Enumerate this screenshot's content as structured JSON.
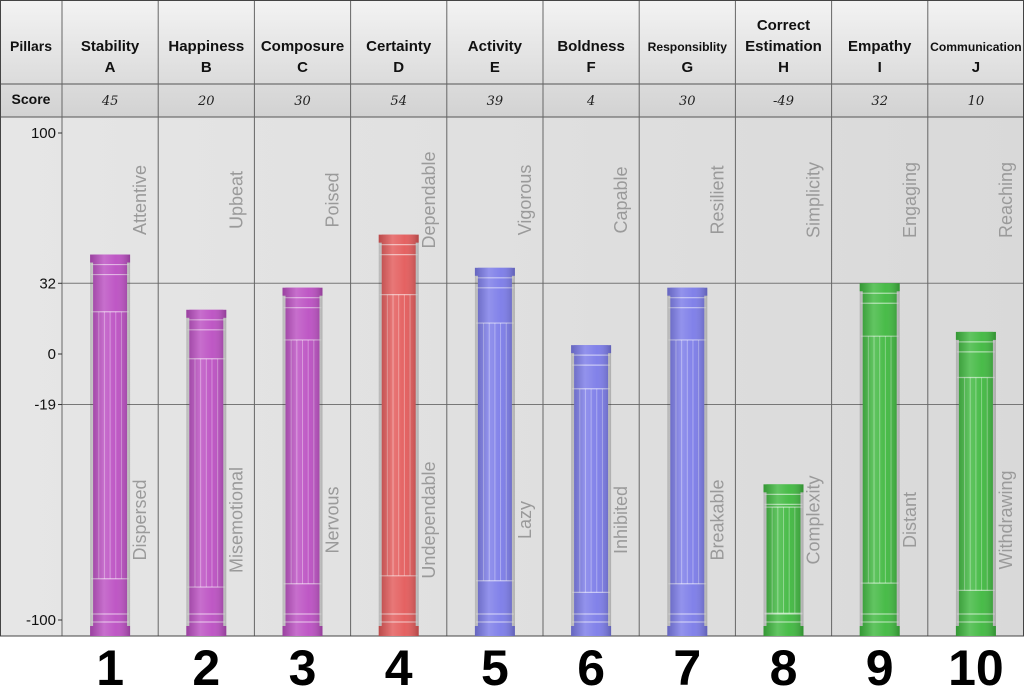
{
  "chart_data": {
    "type": "bar",
    "header_label": "Pillars",
    "score_label": "Score",
    "ylim": [
      -100,
      100
    ],
    "yticks": [
      100,
      32,
      0,
      -19,
      -100
    ],
    "gridlines": [
      32,
      -19
    ],
    "categories": [
      {
        "name": "Stability",
        "letter": "A",
        "score": "45",
        "value": 45,
        "high": "Attentive",
        "low": "Dispersed",
        "number": "1",
        "color": "#bb4fc2"
      },
      {
        "name": "Happiness",
        "letter": "B",
        "score": "20",
        "value": 20,
        "high": "Upbeat",
        "low": "Misemotional",
        "number": "2",
        "color": "#bb4fc2"
      },
      {
        "name": "Composure",
        "letter": "C",
        "score": "30",
        "value": 30,
        "high": "Poised",
        "low": "Nervous",
        "number": "3",
        "color": "#bb4fc2"
      },
      {
        "name": "Certainty",
        "letter": "D",
        "score": "54",
        "value": 54,
        "high": "Dependable",
        "low": "Undependable",
        "number": "4",
        "color": "#e35a5a"
      },
      {
        "name": "Activity",
        "letter": "E",
        "score": "39",
        "value": 39,
        "high": "Vigorous",
        "low": "Lazy",
        "number": "5",
        "color": "#7b7be8"
      },
      {
        "name": "Boldness",
        "letter": "F",
        "score": "4",
        "value": 4,
        "high": "Capable",
        "low": "Inhibited",
        "number": "6",
        "color": "#7b7be8"
      },
      {
        "name": "Responsiblity",
        "letter": "G",
        "score": "30",
        "value": 30,
        "high": "Resilient",
        "low": "Breakable",
        "number": "7",
        "color": "#7b7be8"
      },
      {
        "name": "Correct Estimation",
        "letter": "H",
        "score": "-49",
        "value": -49,
        "high": "Simplicity",
        "low": "Complexity",
        "number": "8",
        "color": "#3fb83f"
      },
      {
        "name": "Empathy",
        "letter": "I",
        "score": "32",
        "value": 32,
        "high": "Engaging",
        "low": "Distant",
        "number": "9",
        "color": "#3fb83f"
      },
      {
        "name": "Communication",
        "letter": "J",
        "score": "10",
        "value": 10,
        "high": "Reaching",
        "low": "Withdrawing",
        "number": "10",
        "color": "#3fb83f"
      }
    ]
  }
}
